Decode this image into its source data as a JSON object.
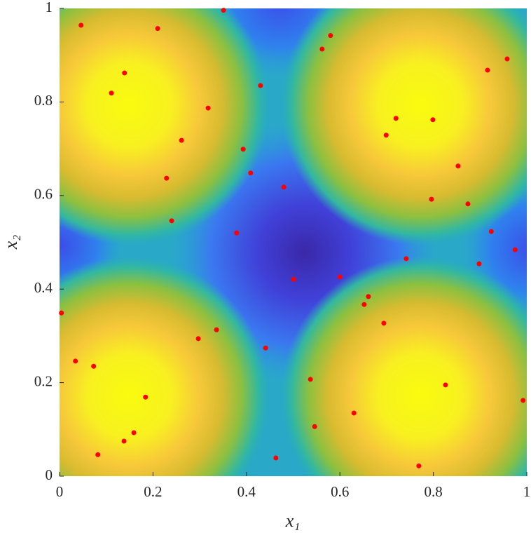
{
  "chart_data": {
    "type": "scatter",
    "xlabel": "x₁",
    "ylabel": "x₂",
    "xlim": [
      0,
      1
    ],
    "ylim": [
      0,
      1
    ],
    "xticks": [
      0,
      0.2,
      0.4,
      0.6,
      0.8,
      1
    ],
    "yticks": [
      0,
      0.2,
      0.4,
      0.6,
      0.8,
      1
    ],
    "color": "#ff0000",
    "x": [
      0.351,
      0.046,
      0.21,
      0.58,
      0.562,
      0.958,
      0.916,
      0.139,
      0.43,
      0.111,
      0.318,
      0.72,
      0.799,
      0.699,
      0.261,
      0.393,
      0.853,
      0.409,
      0.229,
      0.48,
      0.796,
      0.874,
      0.24,
      0.924,
      0.379,
      0.975,
      0.742,
      0.898,
      0.6,
      0.501,
      0.661,
      0.652,
      0.004,
      0.694,
      0.336,
      0.297,
      0.441,
      0.034,
      0.073,
      0.537,
      0.826,
      0.184,
      0.992,
      0.63,
      0.546,
      0.159,
      0.138,
      0.082,
      0.463,
      0.769
    ],
    "y": [
      0.996,
      0.964,
      0.957,
      0.942,
      0.913,
      0.892,
      0.868,
      0.862,
      0.835,
      0.819,
      0.787,
      0.765,
      0.762,
      0.729,
      0.718,
      0.699,
      0.663,
      0.648,
      0.637,
      0.618,
      0.592,
      0.582,
      0.546,
      0.523,
      0.52,
      0.484,
      0.465,
      0.454,
      0.426,
      0.421,
      0.384,
      0.367,
      0.349,
      0.327,
      0.313,
      0.294,
      0.274,
      0.246,
      0.235,
      0.207,
      0.195,
      0.169,
      0.162,
      0.135,
      0.106,
      0.093,
      0.075,
      0.046,
      0.039,
      0.022
    ]
  }
}
